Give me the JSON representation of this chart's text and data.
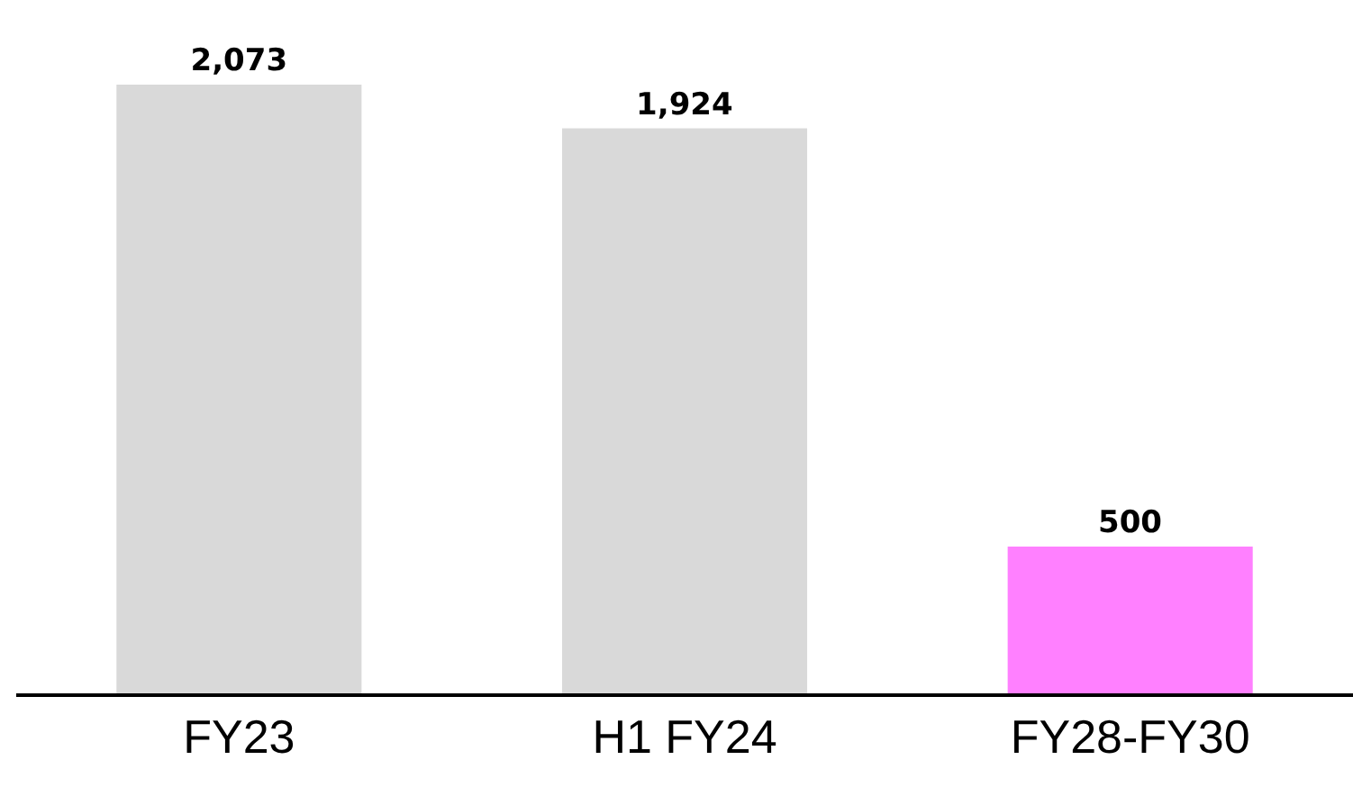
{
  "chart_data": {
    "type": "bar",
    "categories": [
      "FY23",
      "H1 FY24",
      "FY28-FY30"
    ],
    "values": [
      2073,
      1924,
      500
    ],
    "value_labels": [
      "2,073",
      "1,924",
      "500"
    ],
    "colors": [
      "#d9d9d9",
      "#d9d9d9",
      "#ff80ff"
    ]
  }
}
